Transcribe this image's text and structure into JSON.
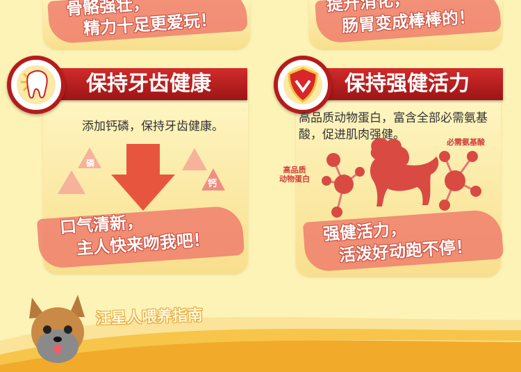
{
  "top_left": {
    "line1": "骨骼强壮，",
    "line2": "精力十足更爱玩！"
  },
  "top_right": {
    "line1": "提升消化，",
    "line2": "肠胃变成棒棒的！"
  },
  "left_card": {
    "title": "保持牙齿健康",
    "description": "添加钙磷，保持牙齿健康。",
    "tag_phosphorus": "磷",
    "tag_calcium": "钙",
    "slogan_line1": "口气清新，",
    "slogan_line2": "主人快来吻我吧！"
  },
  "right_card": {
    "title": "保持强健活力",
    "description": "高品质动物蛋白，富含全部必需氨基酸，促进肌肉强健。",
    "label_amino": "必需氨基酸",
    "label_protein": "高品质\n动物蛋白",
    "slogan_line1": "强健活力，",
    "slogan_line2": "活泼好动跑不停！"
  },
  "footer": {
    "guide_title": "汪星人喂养指南"
  },
  "colors": {
    "header_red": "#b51b1b",
    "coral": "#ef7a6a",
    "cream": "#fdf3b6",
    "molecule": "#d94a42"
  }
}
